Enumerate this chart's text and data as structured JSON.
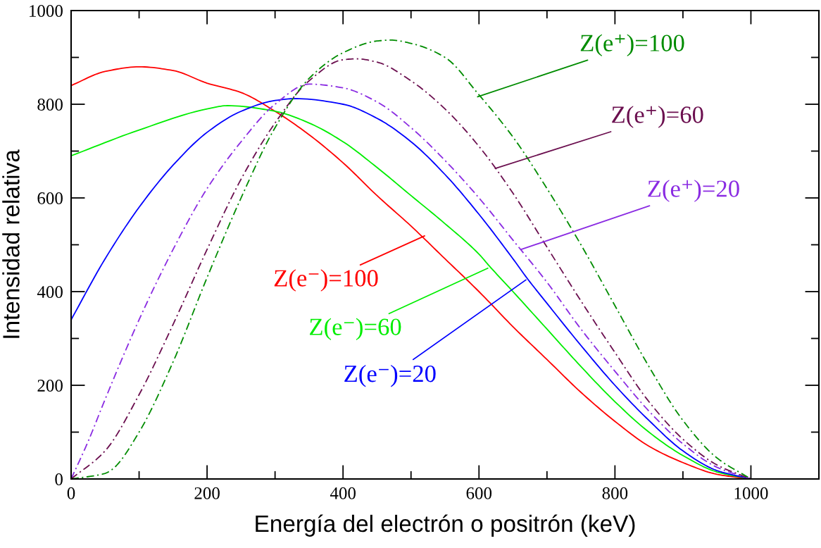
{
  "chart_data": {
    "type": "line",
    "xlabel": "Energía del electrón o positrón (keV)",
    "ylabel": "Intensidad relativa",
    "xlim": [
      0,
      1100
    ],
    "ylim": [
      0,
      1000
    ],
    "xticks": [
      0,
      {
        "value": 100,
        "label": null
      },
      200,
      {
        "value": 300,
        "label": null
      },
      400,
      {
        "value": 500,
        "label": null
      },
      600,
      {
        "value": 700,
        "label": null
      },
      800,
      {
        "value": 900,
        "label": null
      },
      1000
    ],
    "yticks": [
      0,
      {
        "value": 100,
        "label": null
      },
      200,
      {
        "value": 300,
        "label": null
      },
      400,
      {
        "value": 500,
        "label": null
      },
      600,
      {
        "value": 700,
        "label": null
      },
      800,
      {
        "value": 900,
        "label": null
      },
      1000
    ],
    "grid": false,
    "marker": "none",
    "series": [
      {
        "color": "#ff0000",
        "line_style": "solid",
        "x": [
          0,
          50,
          100,
          150,
          200,
          250,
          300,
          350,
          400,
          450,
          500,
          550,
          600,
          650,
          700,
          750,
          800,
          850,
          900,
          950,
          1000
        ],
        "values": [
          840,
          870,
          880,
          872,
          845,
          825,
          785,
          735,
          675,
          605,
          540,
          470,
          400,
          325,
          255,
          185,
          123,
          70,
          35,
          10,
          0
        ]
      },
      {
        "color": "#00ee00",
        "line_style": "solid",
        "x": [
          0,
          100,
          200,
          230,
          300,
          350,
          400,
          450,
          500,
          550,
          600,
          615,
          650,
          700,
          750,
          800,
          850,
          900,
          950,
          1000
        ],
        "values": [
          690,
          745,
          790,
          797,
          785,
          760,
          720,
          665,
          605,
          545,
          480,
          455,
          400,
          320,
          240,
          165,
          100,
          50,
          15,
          0
        ]
      },
      {
        "color": "#0000ff",
        "line_style": "solid",
        "x": [
          0,
          50,
          100,
          150,
          200,
          250,
          300,
          330,
          400,
          450,
          500,
          550,
          600,
          650,
          670,
          700,
          750,
          800,
          850,
          900,
          950,
          1000
        ],
        "values": [
          340,
          470,
          580,
          670,
          740,
          785,
          808,
          812,
          800,
          770,
          720,
          650,
          565,
          470,
          430,
          375,
          285,
          200,
          125,
          60,
          18,
          0
        ]
      },
      {
        "color": "#8a2be2",
        "line_style": "dashdot",
        "x": [
          0,
          25,
          50,
          100,
          150,
          200,
          250,
          300,
          350,
          400,
          450,
          500,
          550,
          600,
          650,
          700,
          750,
          800,
          850,
          900,
          950,
          1000
        ],
        "values": [
          0,
          80,
          170,
          340,
          490,
          620,
          720,
          800,
          843,
          835,
          805,
          750,
          680,
          600,
          510,
          420,
          320,
          230,
          145,
          75,
          25,
          0
        ]
      },
      {
        "color": "#6b0f4f",
        "line_style": "dashdot",
        "x": [
          0,
          50,
          100,
          150,
          200,
          250,
          300,
          350,
          400,
          420,
          450,
          500,
          550,
          600,
          650,
          700,
          750,
          800,
          850,
          900,
          950,
          1000
        ],
        "values": [
          0,
          60,
          180,
          330,
          490,
          640,
          760,
          850,
          895,
          897,
          890,
          850,
          790,
          710,
          610,
          495,
          380,
          270,
          165,
          85,
          30,
          0
        ]
      },
      {
        "color": "#008c00",
        "line_style": "dashdot",
        "x": [
          0,
          50,
          60,
          100,
          150,
          200,
          250,
          300,
          350,
          400,
          450,
          470,
          500,
          550,
          600,
          650,
          700,
          750,
          800,
          850,
          900,
          950,
          1000
        ],
        "values": [
          0,
          12,
          20,
          100,
          250,
          430,
          600,
          750,
          855,
          910,
          935,
          937,
          930,
          900,
          820,
          730,
          620,
          500,
          370,
          240,
          125,
          45,
          0
        ]
      }
    ],
    "annotations": [
      {
        "text": "Z(e⁺)=100",
        "x": 598,
        "y": 816
      },
      {
        "text": "Z(e⁺)=60",
        "x": 624,
        "y": 663
      },
      {
        "text": "Z(e⁺)=20",
        "x": 662,
        "y": 490
      },
      {
        "text": "Z(e⁻)=100",
        "x": 520,
        "y": 519
      },
      {
        "text": "Z(e⁻)=60",
        "x": 613,
        "y": 450
      },
      {
        "text": "Z(e⁻)=20",
        "x": 669,
        "y": 425
      }
    ]
  }
}
